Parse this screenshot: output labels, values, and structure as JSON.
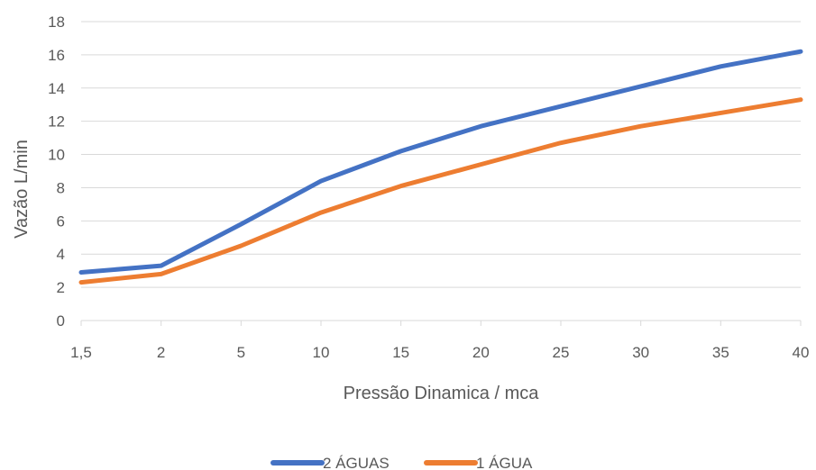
{
  "chart_data": {
    "type": "line",
    "title": "",
    "xlabel": "Pressão Dinamica / mca",
    "ylabel": "Vazão L/min",
    "categories": [
      "1,5",
      "2",
      "5",
      "10",
      "15",
      "20",
      "25",
      "30",
      "35",
      "40"
    ],
    "ylim": [
      0,
      18
    ],
    "yticks": [
      0,
      2,
      4,
      6,
      8,
      10,
      12,
      14,
      16,
      18
    ],
    "grid": "horizontal",
    "legend_position": "bottom",
    "series": [
      {
        "name": "2 ÁGUAS",
        "color": "#4472C4",
        "values": [
          2.9,
          3.3,
          5.8,
          8.4,
          10.2,
          11.7,
          12.9,
          14.1,
          15.3,
          16.2
        ]
      },
      {
        "name": "1 ÁGUA",
        "color": "#ED7D31",
        "values": [
          2.3,
          2.8,
          4.5,
          6.5,
          8.1,
          9.4,
          10.7,
          11.7,
          12.5,
          13.3
        ]
      }
    ]
  }
}
